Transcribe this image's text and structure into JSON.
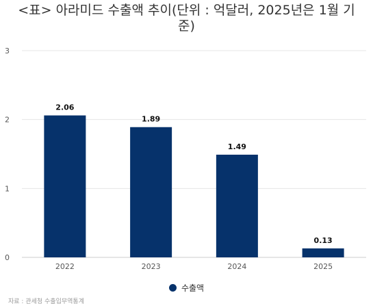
{
  "chart_data": {
    "type": "bar",
    "title": "<표> 아라미드 수출액 추이(단위 : 억달러, 2025년은 1월 기준)",
    "categories": [
      "2022",
      "2023",
      "2024",
      "2025"
    ],
    "series": [
      {
        "name": "수출액",
        "values": [
          2.06,
          1.89,
          1.49,
          0.13
        ]
      }
    ],
    "data_labels": [
      "2.06",
      "1.89",
      "1.49",
      "0.13"
    ],
    "y_ticks": [
      "0",
      "1",
      "2",
      "3"
    ],
    "ylim": [
      0,
      3
    ],
    "xlabel": "",
    "ylabel": "",
    "grid": true,
    "legend_position": "bottom",
    "bar_color": "#06326b",
    "source": "자료 : 관세청 수출입무역통계"
  }
}
